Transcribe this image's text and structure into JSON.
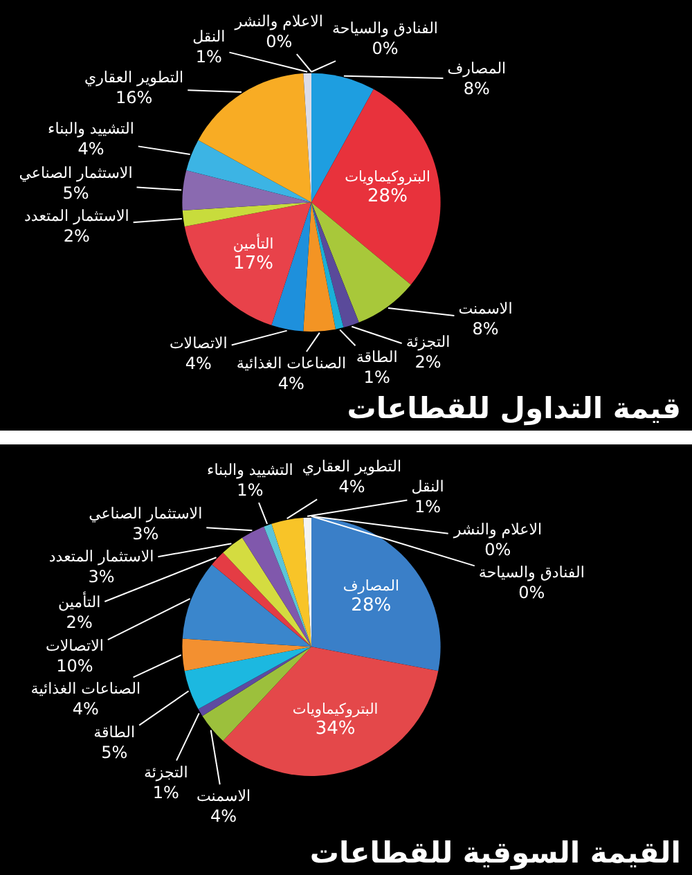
{
  "chart_data": [
    {
      "type": "pie",
      "title": "قيمة التداول للقطاعات",
      "categories": [
        "المصارف",
        "البتروكيماويات",
        "الاسمنت",
        "التجزئة",
        "الطاقة",
        "الصناعات الغذائية",
        "الاتصالات",
        "التأمين",
        "الاستثمار المتعدد",
        "الاستثمار الصناعي",
        "التشييد والبناء",
        "التطوير العقاري",
        "النقل",
        "الاعلام والنشر",
        "الفنادق والسياحة"
      ],
      "values": [
        8,
        28,
        8,
        2,
        1,
        4,
        4,
        17,
        2,
        5,
        4,
        16,
        1,
        0,
        0
      ],
      "colors": [
        "#1e9ee0",
        "#e8323c",
        "#a8c83a",
        "#5a4a9a",
        "#1ab0d8",
        "#f39424",
        "#1e90dc",
        "#e8424a",
        "#c8dc3c",
        "#8a6ab0",
        "#3cb4e4",
        "#f8ac24",
        "#dcdce8",
        null,
        null
      ],
      "value_labels": [
        "8%",
        "28%",
        "8%",
        "2%",
        "1%",
        "4%",
        "4%",
        "17%",
        "2%",
        "5%",
        "4%",
        "16%",
        "1%",
        "0%",
        "0%"
      ]
    },
    {
      "type": "pie",
      "title": "القيمة السوقية للقطاعات",
      "categories": [
        "المصارف",
        "البتروكيماويات",
        "الاسمنت",
        "التجزئة",
        "الطاقة",
        "الصناعات الغذائية",
        "الاتصالات",
        "التأمين",
        "الاستثمار المتعدد",
        "الاستثمار الصناعي",
        "التشييد والبناء",
        "التطوير العقاري",
        "النقل",
        "الاعلام والنشر",
        "الفنادق والسياحة"
      ],
      "values": [
        28,
        34,
        4,
        1,
        5,
        4,
        10,
        2,
        3,
        3,
        1,
        4,
        1,
        0,
        0
      ],
      "colors": [
        "#3a7fc8",
        "#e4484a",
        "#9cc03c",
        "#5e4aa0",
        "#1cb8e0",
        "#f39030",
        "#3a86cc",
        "#e43c44",
        "#d4dc40",
        "#8058ac",
        "#5cc4d8",
        "#f8c428",
        "#f4f4f4",
        null,
        null
      ],
      "value_labels": [
        "28%",
        "34%",
        "4%",
        "1%",
        "5%",
        "4%",
        "10%",
        "2%",
        "3%",
        "3%",
        "1%",
        "4%",
        "1%",
        "0%",
        "0%"
      ]
    }
  ]
}
